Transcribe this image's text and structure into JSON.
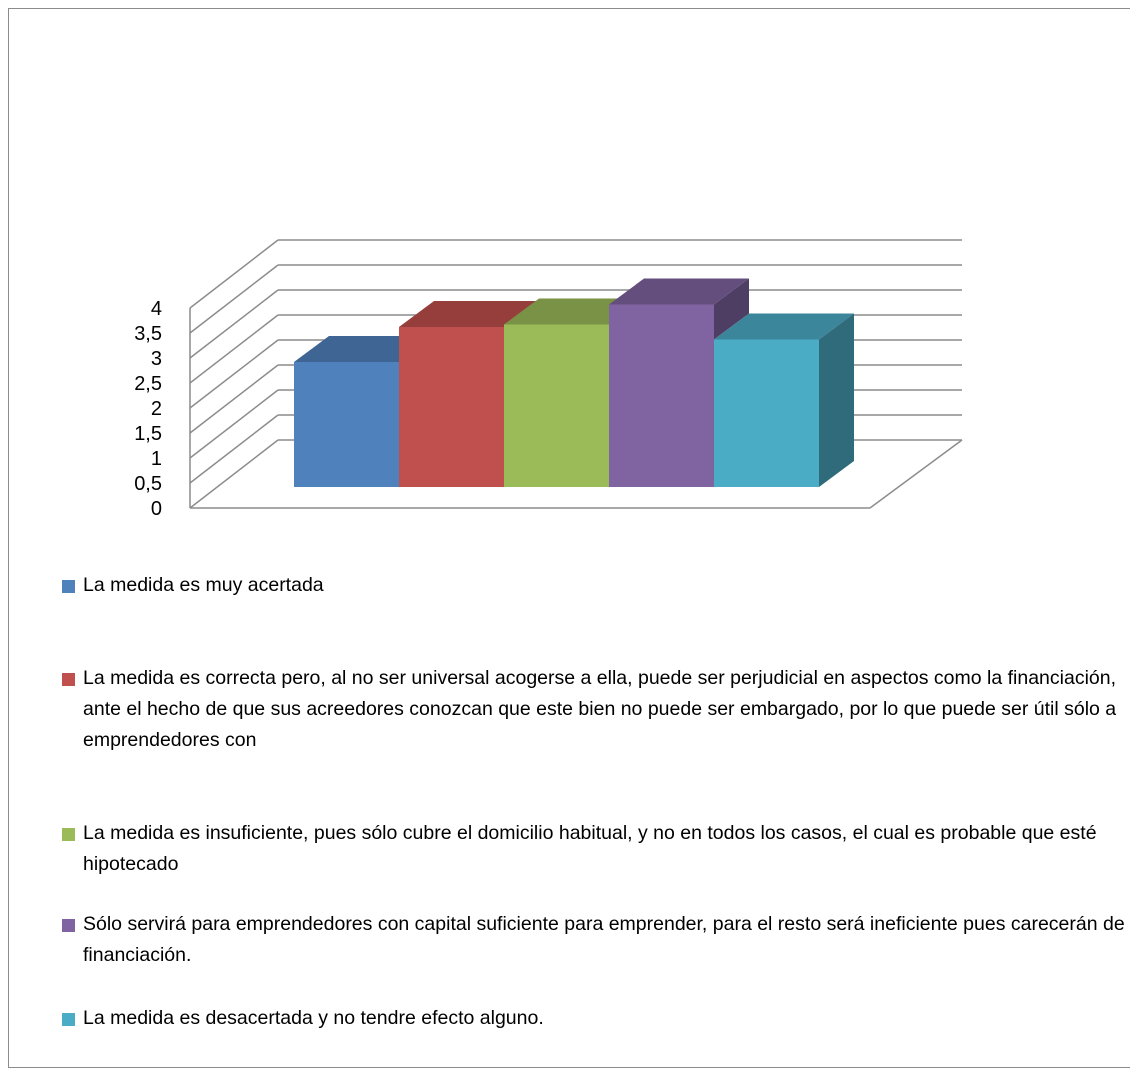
{
  "chart_data": {
    "type": "bar",
    "title": "",
    "xlabel": "",
    "ylabel": "",
    "ylim": [
      0,
      4
    ],
    "yticks": [
      "0",
      "0,5",
      "1",
      "1,5",
      "2",
      "2,5",
      "3",
      "3,5",
      "4"
    ],
    "three_d": true,
    "grid": true,
    "legend_position": "bottom",
    "series": [
      {
        "name": "La medida es muy acertada",
        "value": 2.5,
        "color": "#4f81bd"
      },
      {
        "name": "La medida es correcta pero, al no ser universal acogerse a ella, puede ser perjudicial en aspectos como la financiación, ante el hecho de que sus acreedores conozcan que este bien no puede ser embargado, por lo que puede ser útil sólo a emprendedores con",
        "value": 3.2,
        "color": "#c0504d"
      },
      {
        "name": "La medida es insuficiente, pues sólo cubre el domicilio habitual, y no en todos los casos, el cual es probable que esté hipotecado",
        "value": 3.25,
        "color": "#9bbb59"
      },
      {
        "name": "Sólo servirá para emprendedores con capital suficiente para emprender, para el resto será ineficiente pues carecerán de financiación.",
        "value": 3.65,
        "color": "#8064a2"
      },
      {
        "name": "La medida es desacertada y no tendre efecto alguno.",
        "value": 2.95,
        "color": "#4bacc6"
      }
    ]
  }
}
